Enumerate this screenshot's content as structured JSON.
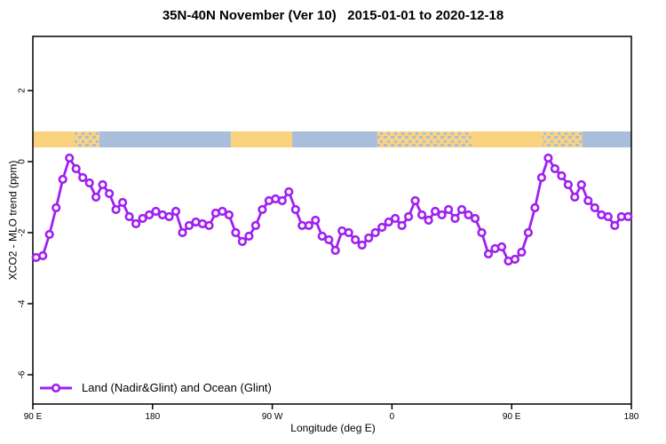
{
  "title": "35N-40N November (Ver 10)   2015-01-01 to 2020-12-18",
  "legend": {
    "label": "Land (Nadir&Glint) and Ocean (Glint)"
  },
  "colors": {
    "series": "#A020F0",
    "marker_fill": "#FFFFFF",
    "land": "#FBD37F",
    "ocean": "#A9BEDB",
    "axis": "#000000"
  },
  "chart_data": {
    "type": "line",
    "title": "35N-40N November (Ver 10)   2015-01-01 to 2020-12-18",
    "xlabel": "Longitude (deg E)",
    "ylabel": "XCO2 - MLO trend (ppm)",
    "ylim": [
      -6.8,
      3.5
    ],
    "xlim_continuous_deg_east": [
      90,
      540
    ],
    "grid": false,
    "legend_position": "bottom-left",
    "yticks": [
      {
        "value": 2,
        "label": "2"
      },
      {
        "value": 0,
        "label": "0"
      },
      {
        "value": -2,
        "label": "-2"
      },
      {
        "value": -4,
        "label": "-4"
      },
      {
        "value": -6,
        "label": "-6"
      }
    ],
    "xticks": [
      {
        "lon": 90,
        "label": "90 E"
      },
      {
        "lon": 180,
        "label": "180"
      },
      {
        "lon": 270,
        "label": "90 W"
      },
      {
        "lon": 360,
        "label": "0"
      },
      {
        "lon": 450,
        "label": "90 E"
      },
      {
        "lon": 540,
        "label": "180"
      }
    ],
    "x": [
      92.5,
      97.5,
      102.5,
      107.5,
      112.5,
      117.5,
      122.5,
      127.5,
      132.5,
      137.5,
      142.5,
      147.5,
      152.5,
      157.5,
      162.5,
      167.5,
      172.5,
      177.5,
      182.5,
      187.5,
      192.5,
      197.5,
      202.5,
      207.5,
      212.5,
      217.5,
      222.5,
      227.5,
      232.5,
      237.5,
      242.5,
      247.5,
      252.5,
      257.5,
      262.5,
      267.5,
      272.5,
      277.5,
      282.5,
      287.5,
      292.5,
      297.5,
      302.5,
      307.5,
      312.5,
      317.5,
      322.5,
      327.5,
      332.5,
      337.5,
      342.5,
      347.5,
      352.5,
      357.5,
      362.5,
      367.5,
      372.5,
      377.5,
      382.5,
      387.5,
      392.5,
      397.5,
      402.5,
      407.5,
      412.5,
      417.5,
      422.5,
      427.5,
      432.5,
      437.5,
      442.5,
      447.5,
      452.5,
      457.5,
      462.5,
      467.5,
      472.5,
      477.5,
      482.5,
      487.5,
      492.5,
      497.5,
      502.5,
      507.5,
      512.5,
      517.5,
      522.5,
      527.5,
      532.5,
      537.5
    ],
    "values": [
      -2.7,
      -2.65,
      -2.05,
      -1.3,
      -0.5,
      0.1,
      -0.2,
      -0.45,
      -0.6,
      -1.0,
      -0.65,
      -0.9,
      -1.35,
      -1.15,
      -1.55,
      -1.75,
      -1.6,
      -1.5,
      -1.4,
      -1.5,
      -1.55,
      -1.4,
      -2.0,
      -1.8,
      -1.7,
      -1.75,
      -1.8,
      -1.45,
      -1.4,
      -1.5,
      -2.0,
      -2.25,
      -2.1,
      -1.8,
      -1.35,
      -1.1,
      -1.05,
      -1.1,
      -0.85,
      -1.35,
      -1.8,
      -1.8,
      -1.65,
      -2.1,
      -2.2,
      -2.5,
      -1.95,
      -2.0,
      -2.2,
      -2.35,
      -2.15,
      -2.0,
      -1.85,
      -1.7,
      -1.6,
      -1.8,
      -1.55,
      -1.1,
      -1.5,
      -1.65,
      -1.4,
      -1.5,
      -1.35,
      -1.6,
      -1.35,
      -1.5,
      -1.6,
      -2.0,
      -2.6,
      -2.45,
      -2.4,
      -2.8,
      -2.75,
      -2.55,
      -2.0,
      -1.3,
      -0.45,
      0.1,
      -0.2,
      -0.4,
      -0.65,
      -1.0,
      -0.65,
      -1.1,
      -1.3,
      -1.5,
      -1.55,
      -1.8,
      -1.55,
      -1.55
    ],
    "land_ocean_strip": {
      "value_range": [
        0.4,
        0.85
      ],
      "segments": [
        {
          "from": 90,
          "to": 121,
          "type": "land"
        },
        {
          "from": 121,
          "to": 140,
          "type": "mix"
        },
        {
          "from": 140,
          "to": 239,
          "type": "ocean"
        },
        {
          "from": 239,
          "to": 285,
          "type": "land"
        },
        {
          "from": 285,
          "to": 349,
          "type": "ocean"
        },
        {
          "from": 349,
          "to": 420,
          "type": "mix"
        },
        {
          "from": 420,
          "to": 473,
          "type": "land"
        },
        {
          "from": 473,
          "to": 503,
          "type": "mix"
        },
        {
          "from": 503,
          "to": 540,
          "type": "ocean"
        }
      ]
    }
  }
}
